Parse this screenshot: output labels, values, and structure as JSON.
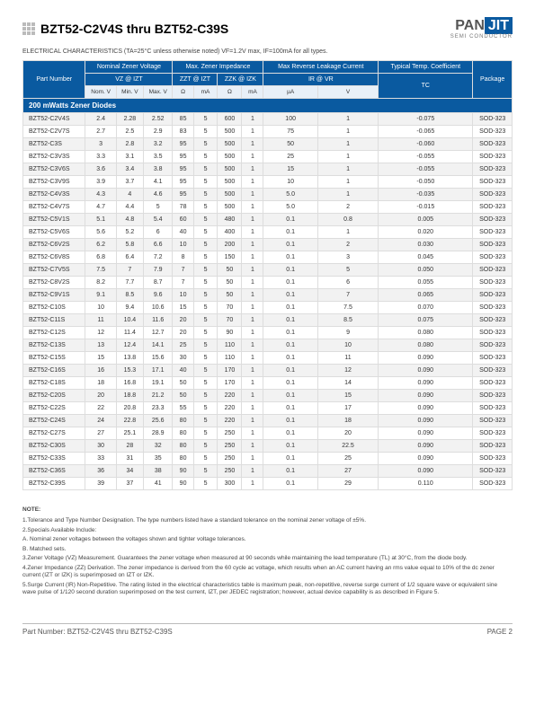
{
  "header": {
    "title": "BZT52-C2V4S thru BZT52-C39S",
    "brand_pan": "PAN",
    "brand_jit": "JIT",
    "brand_sub": "SEMI CONDUCTOR"
  },
  "caption": "ELECTRICAL CHARACTERISTICS (TA=25°C unless otherwise noted) VF=1.2V max, IF=100mA for all types.",
  "table": {
    "group_headers": [
      "Part Number",
      "Nominal Zener Voltage",
      "Max. Zener Impedance",
      "Max Reverse Leakage Current",
      "Typical Temp. Coefficient",
      "Package"
    ],
    "sub1": [
      "",
      "VZ @ IZT",
      "ZZT @ IZT",
      "ZZK @ IZK",
      "IR @ VR",
      "TC",
      ""
    ],
    "sub2": [
      "",
      "Nom. V",
      "Min. V",
      "Max. V",
      "Ω",
      "mA",
      "Ω",
      "mA",
      "µA",
      "V",
      "",
      ""
    ],
    "section": "200 mWatts  Zener Diodes",
    "rows": [
      [
        "BZT52-C2V4S",
        "2.4",
        "2.28",
        "2.52",
        "85",
        "5",
        "600",
        "1",
        "100",
        "1",
        "-0.075",
        "SOD-323"
      ],
      [
        "BZT52-C2V7S",
        "2.7",
        "2.5",
        "2.9",
        "83",
        "5",
        "500",
        "1",
        "75",
        "1",
        "-0.065",
        "SOD-323"
      ],
      [
        "BZT52-C3S",
        "3",
        "2.8",
        "3.2",
        "95",
        "5",
        "500",
        "1",
        "50",
        "1",
        "-0.060",
        "SOD-323"
      ],
      [
        "BZT52-C3V3S",
        "3.3",
        "3.1",
        "3.5",
        "95",
        "5",
        "500",
        "1",
        "25",
        "1",
        "-0.055",
        "SOD-323"
      ],
      [
        "BZT52-C3V6S",
        "3.6",
        "3.4",
        "3.8",
        "95",
        "5",
        "500",
        "1",
        "15",
        "1",
        "-0.055",
        "SOD-323"
      ],
      [
        "BZT52-C3V9S",
        "3.9",
        "3.7",
        "4.1",
        "95",
        "5",
        "500",
        "1",
        "10",
        "1",
        "-0.050",
        "SOD-323"
      ],
      [
        "BZT52-C4V3S",
        "4.3",
        "4",
        "4.6",
        "95",
        "5",
        "500",
        "1",
        "5.0",
        "1",
        "-0.035",
        "SOD-323"
      ],
      [
        "BZT52-C4V7S",
        "4.7",
        "4.4",
        "5",
        "78",
        "5",
        "500",
        "1",
        "5.0",
        "2",
        "-0.015",
        "SOD-323"
      ],
      [
        "BZT52-C5V1S",
        "5.1",
        "4.8",
        "5.4",
        "60",
        "5",
        "480",
        "1",
        "0.1",
        "0.8",
        "0.005",
        "SOD-323"
      ],
      [
        "BZT52-C5V6S",
        "5.6",
        "5.2",
        "6",
        "40",
        "5",
        "400",
        "1",
        "0.1",
        "1",
        "0.020",
        "SOD-323"
      ],
      [
        "BZT52-C6V2S",
        "6.2",
        "5.8",
        "6.6",
        "10",
        "5",
        "200",
        "1",
        "0.1",
        "2",
        "0.030",
        "SOD-323"
      ],
      [
        "BZT52-C6V8S",
        "6.8",
        "6.4",
        "7.2",
        "8",
        "5",
        "150",
        "1",
        "0.1",
        "3",
        "0.045",
        "SOD-323"
      ],
      [
        "BZT52-C7V5S",
        "7.5",
        "7",
        "7.9",
        "7",
        "5",
        "50",
        "1",
        "0.1",
        "5",
        "0.050",
        "SOD-323"
      ],
      [
        "BZT52-C8V2S",
        "8.2",
        "7.7",
        "8.7",
        "7",
        "5",
        "50",
        "1",
        "0.1",
        "6",
        "0.055",
        "SOD-323"
      ],
      [
        "BZT52-C9V1S",
        "9.1",
        "8.5",
        "9.6",
        "10",
        "5",
        "50",
        "1",
        "0.1",
        "7",
        "0.065",
        "SOD-323"
      ],
      [
        "BZT52-C10S",
        "10",
        "9.4",
        "10.6",
        "15",
        "5",
        "70",
        "1",
        "0.1",
        "7.5",
        "0.070",
        "SOD-323"
      ],
      [
        "BZT52-C11S",
        "11",
        "10.4",
        "11.6",
        "20",
        "5",
        "70",
        "1",
        "0.1",
        "8.5",
        "0.075",
        "SOD-323"
      ],
      [
        "BZT52-C12S",
        "12",
        "11.4",
        "12.7",
        "20",
        "5",
        "90",
        "1",
        "0.1",
        "9",
        "0.080",
        "SOD-323"
      ],
      [
        "BZT52-C13S",
        "13",
        "12.4",
        "14.1",
        "25",
        "5",
        "110",
        "1",
        "0.1",
        "10",
        "0.080",
        "SOD-323"
      ],
      [
        "BZT52-C15S",
        "15",
        "13.8",
        "15.6",
        "30",
        "5",
        "110",
        "1",
        "0.1",
        "11",
        "0.090",
        "SOD-323"
      ],
      [
        "BZT52-C16S",
        "16",
        "15.3",
        "17.1",
        "40",
        "5",
        "170",
        "1",
        "0.1",
        "12",
        "0.090",
        "SOD-323"
      ],
      [
        "BZT52-C18S",
        "18",
        "16.8",
        "19.1",
        "50",
        "5",
        "170",
        "1",
        "0.1",
        "14",
        "0.090",
        "SOD-323"
      ],
      [
        "BZT52-C20S",
        "20",
        "18.8",
        "21.2",
        "50",
        "5",
        "220",
        "1",
        "0.1",
        "15",
        "0.090",
        "SOD-323"
      ],
      [
        "BZT52-C22S",
        "22",
        "20.8",
        "23.3",
        "55",
        "5",
        "220",
        "1",
        "0.1",
        "17",
        "0.090",
        "SOD-323"
      ],
      [
        "BZT52-C24S",
        "24",
        "22.8",
        "25.6",
        "80",
        "5",
        "220",
        "1",
        "0.1",
        "18",
        "0.090",
        "SOD-323"
      ],
      [
        "BZT52-C27S",
        "27",
        "25.1",
        "28.9",
        "80",
        "5",
        "250",
        "1",
        "0.1",
        "20",
        "0.090",
        "SOD-323"
      ],
      [
        "BZT52-C30S",
        "30",
        "28",
        "32",
        "80",
        "5",
        "250",
        "1",
        "0.1",
        "22.5",
        "0.090",
        "SOD-323"
      ],
      [
        "BZT52-C33S",
        "33",
        "31",
        "35",
        "80",
        "5",
        "250",
        "1",
        "0.1",
        "25",
        "0.090",
        "SOD-323"
      ],
      [
        "BZT52-C36S",
        "36",
        "34",
        "38",
        "90",
        "5",
        "250",
        "1",
        "0.1",
        "27",
        "0.090",
        "SOD-323"
      ],
      [
        "BZT52-C39S",
        "39",
        "37",
        "41",
        "90",
        "5",
        "300",
        "1",
        "0.1",
        "29",
        "0.110",
        "SOD-323"
      ]
    ]
  },
  "notes": {
    "header": "NOTE:",
    "items": [
      "1.Tolerance and Type Number Designation. The type numbers listed have a standard tolerance on the nominal zener voltage of ±5%.",
      "2.Specials Available Include:",
      "   A. Nominal zener voltages between the voltages shown and tighter voltage tolerances.",
      "   B. Matched sets.",
      "3.Zener Voltage (VZ) Measurement. Guarantees the zener voltage when measured at 90 seconds while maintaining the lead temperature (TL) at 30°C, from the diode body.",
      "4.Zener Impedance (ZZ) Derivation. The zener impedance is derived from the 60 cycle ac voltage, which results when an AC current having an rms value equal to 10% of the dc zener current (IZT or IZK) is superimposed on IZT or IZK.",
      "5.Surge Current (IR) Non-Repetitive. The rating listed in the electrical characteristics table is maximum peak, non-repetitive, reverse surge current of 1/2 square wave or equivalent sine wave pulse of 1/120 second duration superimposed on the test current, IZT, per JEDEC registration; however, actual device capability is as described in Figure 5."
    ]
  },
  "footer": {
    "left": "Part Number: BZT52-C2V4S thru BZT52-C39S",
    "right": "PAGE  2"
  }
}
